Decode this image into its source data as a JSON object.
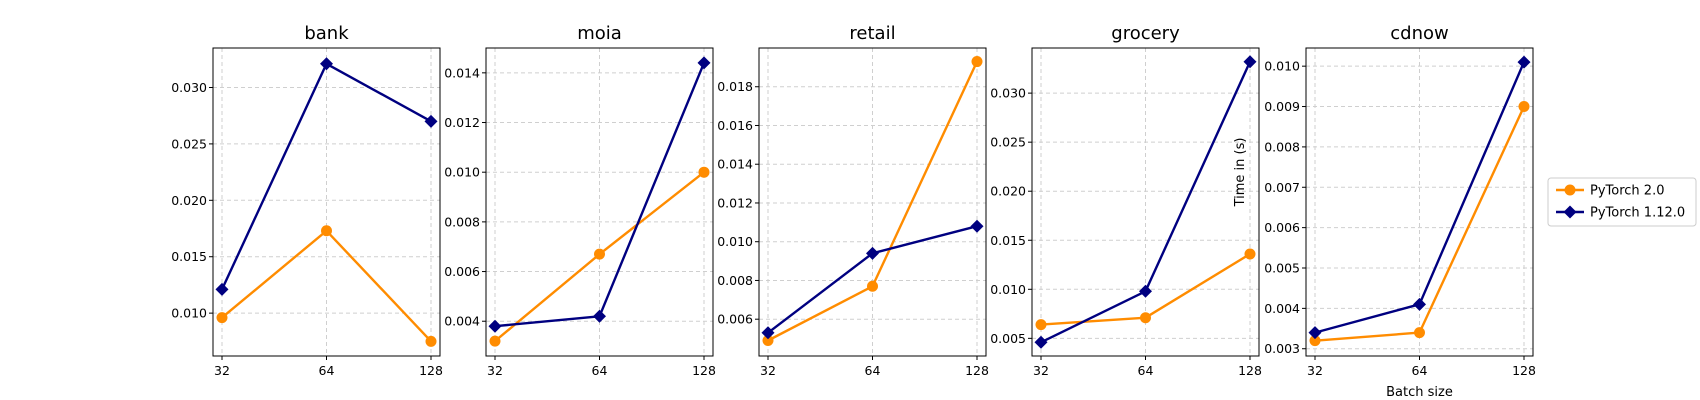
{
  "chart_data": [
    {
      "type": "line",
      "title": "bank",
      "xlabel": "",
      "ylabel": "",
      "x": [
        32,
        64,
        128
      ],
      "x_scale": "log2",
      "ylim": [
        0.0062,
        0.0335
      ],
      "yticks": [
        0.01,
        0.015,
        0.02,
        0.025,
        0.03
      ],
      "ytick_labels": [
        "0.010",
        "0.015",
        "0.020",
        "0.025",
        "0.030"
      ],
      "grid": true,
      "series": [
        {
          "name": "PyTorch 2.0",
          "values": [
            0.0096,
            0.0173,
            0.0075
          ]
        },
        {
          "name": "PyTorch 1.12.0",
          "values": [
            0.0121,
            0.0321,
            0.027
          ]
        }
      ]
    },
    {
      "type": "line",
      "title": "moia",
      "xlabel": "",
      "ylabel": "",
      "x": [
        32,
        64,
        128
      ],
      "x_scale": "log2",
      "ylim": [
        0.0026,
        0.015
      ],
      "yticks": [
        0.004,
        0.006,
        0.008,
        0.01,
        0.012,
        0.014
      ],
      "ytick_labels": [
        "0.004",
        "0.006",
        "0.008",
        "0.010",
        "0.012",
        "0.014"
      ],
      "grid": true,
      "series": [
        {
          "name": "PyTorch 2.0",
          "values": [
            0.0032,
            0.0067,
            0.01
          ]
        },
        {
          "name": "PyTorch 1.12.0",
          "values": [
            0.0038,
            0.0042,
            0.0144
          ]
        }
      ]
    },
    {
      "type": "line",
      "title": "retail",
      "xlabel": "",
      "ylabel": "",
      "x": [
        32,
        64,
        128
      ],
      "x_scale": "log2",
      "ylim": [
        0.0041,
        0.02
      ],
      "yticks": [
        0.006,
        0.008,
        0.01,
        0.012,
        0.014,
        0.016,
        0.018
      ],
      "ytick_labels": [
        "0.006",
        "0.008",
        "0.010",
        "0.012",
        "0.014",
        "0.016",
        "0.018"
      ],
      "grid": true,
      "series": [
        {
          "name": "PyTorch 2.0",
          "values": [
            0.0049,
            0.0077,
            0.0193
          ]
        },
        {
          "name": "PyTorch 1.12.0",
          "values": [
            0.0053,
            0.0094,
            0.0108
          ]
        }
      ]
    },
    {
      "type": "line",
      "title": "grocery",
      "xlabel": "",
      "ylabel": "",
      "x": [
        32,
        64,
        128
      ],
      "x_scale": "log2",
      "ylim": [
        0.0032,
        0.0346
      ],
      "yticks": [
        0.005,
        0.01,
        0.015,
        0.02,
        0.025,
        0.03
      ],
      "ytick_labels": [
        "0.005",
        "0.010",
        "0.015",
        "0.020",
        "0.025",
        "0.030"
      ],
      "grid": true,
      "series": [
        {
          "name": "PyTorch 2.0",
          "values": [
            0.0064,
            0.0071,
            0.0136
          ]
        },
        {
          "name": "PyTorch 1.12.0",
          "values": [
            0.0046,
            0.0098,
            0.0332
          ]
        }
      ]
    },
    {
      "type": "line",
      "title": "cdnow",
      "xlabel": "Batch size",
      "ylabel": "Time in (s)",
      "x": [
        32,
        64,
        128
      ],
      "x_scale": "log2",
      "ylim": [
        0.00282,
        0.01045
      ],
      "yticks": [
        0.003,
        0.004,
        0.005,
        0.006,
        0.007,
        0.008,
        0.009,
        0.01
      ],
      "ytick_labels": [
        "0.003",
        "0.004",
        "0.005",
        "0.006",
        "0.007",
        "0.008",
        "0.009",
        "0.010"
      ],
      "grid": true,
      "series": [
        {
          "name": "PyTorch 2.0",
          "values": [
            0.0032,
            0.0034,
            0.009
          ]
        },
        {
          "name": "PyTorch 1.12.0",
          "values": [
            0.0034,
            0.0041,
            0.0101
          ]
        }
      ]
    }
  ],
  "legend": {
    "placement": "right",
    "entries": [
      {
        "label": "PyTorch 2.0",
        "color": "#ff8c00",
        "marker": "circle"
      },
      {
        "label": "PyTorch 1.12.0",
        "color": "#000080",
        "marker": "diamond"
      }
    ]
  },
  "colors": {
    "PyTorch 2.0": "#ff8c00",
    "PyTorch 1.12.0": "#000080"
  }
}
